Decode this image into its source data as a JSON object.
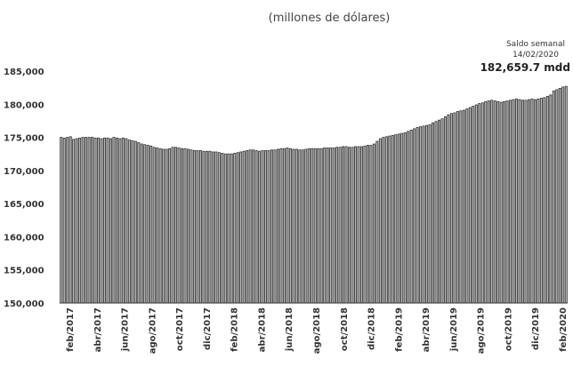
{
  "chart_data": {
    "type": "bar",
    "subtitle": "(millones de dólares)",
    "ylim": [
      150000,
      185000
    ],
    "yticks": [
      "185,000",
      "180,000",
      "175,000",
      "170,000",
      "165,000",
      "160,000",
      "155,000",
      "150,000"
    ],
    "ytick_values": [
      185000,
      180000,
      175000,
      170000,
      165000,
      160000,
      155000,
      150000
    ],
    "xtick_labels": [
      "feb/2017",
      "abr/2017",
      "jun/2017",
      "ago/2017",
      "oct/2017",
      "dic/2017",
      "feb/2018",
      "abr/2018",
      "jun/2018",
      "ago/2018",
      "oct/2018",
      "dic/2018",
      "feb/2019",
      "abr/2019",
      "jun/2019",
      "ago/2019",
      "oct/2019",
      "dic/2019",
      "feb/2020"
    ],
    "grid": false,
    "bar_color": "#b9b9b9",
    "bar_edge_color": "#2e2e2e",
    "annotation": {
      "line1": "Saldo semanal",
      "line2": "14/02/2020",
      "value": "182,659.7 mdd"
    },
    "values": [
      175000,
      174900,
      175000,
      175100,
      174700,
      174800,
      174900,
      175000,
      175000,
      175000,
      175000,
      174900,
      174900,
      174800,
      174900,
      174900,
      174800,
      175000,
      174900,
      174800,
      174900,
      174800,
      174600,
      174500,
      174400,
      174200,
      174000,
      173900,
      173800,
      173700,
      173500,
      173400,
      173300,
      173200,
      173200,
      173300,
      173500,
      173500,
      173400,
      173300,
      173300,
      173200,
      173100,
      173000,
      173000,
      173000,
      172900,
      172900,
      172900,
      172800,
      172800,
      172700,
      172600,
      172500,
      172500,
      172500,
      172600,
      172700,
      172800,
      172900,
      173000,
      173100,
      173100,
      173000,
      172900,
      173000,
      173000,
      173000,
      173100,
      173100,
      173200,
      173300,
      173300,
      173400,
      173300,
      173200,
      173200,
      173100,
      173100,
      173200,
      173300,
      173300,
      173300,
      173300,
      173300,
      173400,
      173400,
      173400,
      173400,
      173500,
      173500,
      173600,
      173600,
      173500,
      173500,
      173600,
      173600,
      173600,
      173700,
      173800,
      173800,
      174000,
      174400,
      174800,
      175000,
      175100,
      175200,
      175300,
      175400,
      175500,
      175600,
      175700,
      175900,
      176100,
      176300,
      176500,
      176600,
      176700,
      176800,
      176900,
      177200,
      177400,
      177600,
      177800,
      178100,
      178400,
      178600,
      178700,
      178900,
      179000,
      179100,
      179300,
      179500,
      179700,
      179900,
      180100,
      180200,
      180400,
      180500,
      180600,
      180500,
      180400,
      180300,
      180400,
      180500,
      180600,
      180700,
      180800,
      180700,
      180600,
      180600,
      180700,
      180800,
      180700,
      180800,
      180900,
      181000,
      181200,
      181400,
      182000,
      182200,
      182400,
      182600,
      182700
    ]
  }
}
